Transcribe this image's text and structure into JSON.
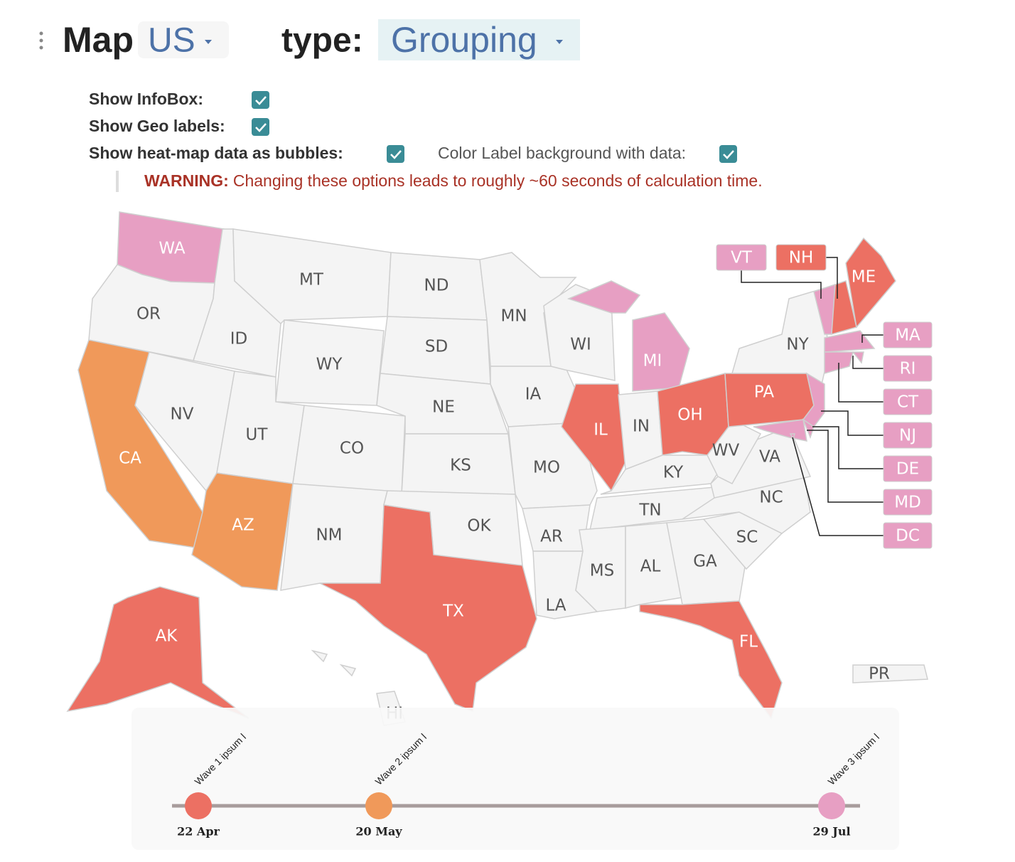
{
  "toolbar": {
    "title": "Map",
    "region": "US",
    "type_label": "type:",
    "type": "Grouping"
  },
  "options": [
    {
      "label": "Show InfoBox:",
      "checked": true
    },
    {
      "label": "Show Geo labels:",
      "checked": true
    },
    {
      "label": "Show heat-map data as bubbles:",
      "checked": true
    }
  ],
  "color_label_option": {
    "label": "Color Label background with data:",
    "checked": true
  },
  "warning": {
    "label": "WARNING:",
    "text": "Changing these options leads to roughly ~60 seconds of calculation time."
  },
  "map": {
    "states": [
      {
        "label": "WA",
        "color": "#e79fc3"
      },
      {
        "label": "OR",
        "color": "#f4f4f4"
      },
      {
        "label": "CA",
        "color": "#f0995a"
      },
      {
        "label": "NV",
        "color": "#f4f4f4"
      },
      {
        "label": "ID",
        "color": "#f4f4f4"
      },
      {
        "label": "MT",
        "color": "#f4f4f4"
      },
      {
        "label": "WY",
        "color": "#f4f4f4"
      },
      {
        "label": "UT",
        "color": "#f4f4f4"
      },
      {
        "label": "AZ",
        "color": "#f0995a"
      },
      {
        "label": "CO",
        "color": "#f4f4f4"
      },
      {
        "label": "NM",
        "color": "#f4f4f4"
      },
      {
        "label": "ND",
        "color": "#f4f4f4"
      },
      {
        "label": "SD",
        "color": "#f4f4f4"
      },
      {
        "label": "NE",
        "color": "#f4f4f4"
      },
      {
        "label": "KS",
        "color": "#f4f4f4"
      },
      {
        "label": "OK",
        "color": "#f4f4f4"
      },
      {
        "label": "TX",
        "color": "#ec7063"
      },
      {
        "label": "MN",
        "color": "#f4f4f4"
      },
      {
        "label": "IA",
        "color": "#f4f4f4"
      },
      {
        "label": "MO",
        "color": "#f4f4f4"
      },
      {
        "label": "AR",
        "color": "#f4f4f4"
      },
      {
        "label": "LA",
        "color": "#f4f4f4"
      },
      {
        "label": "WI",
        "color": "#f4f4f4"
      },
      {
        "label": "IL",
        "color": "#ec7063"
      },
      {
        "label": "MI",
        "color": "#e79fc3"
      },
      {
        "label": "IN",
        "color": "#f4f4f4"
      },
      {
        "label": "OH",
        "color": "#ec7063"
      },
      {
        "label": "KY",
        "color": "#f4f4f4"
      },
      {
        "label": "TN",
        "color": "#f4f4f4"
      },
      {
        "label": "MS",
        "color": "#f4f4f4"
      },
      {
        "label": "AL",
        "color": "#f4f4f4"
      },
      {
        "label": "GA",
        "color": "#f4f4f4"
      },
      {
        "label": "FL",
        "color": "#ec7063"
      },
      {
        "label": "SC",
        "color": "#f4f4f4"
      },
      {
        "label": "NC",
        "color": "#f4f4f4"
      },
      {
        "label": "VA",
        "color": "#f4f4f4"
      },
      {
        "label": "WV",
        "color": "#f4f4f4"
      },
      {
        "label": "PA",
        "color": "#ec7063"
      },
      {
        "label": "NY",
        "color": "#f4f4f4"
      },
      {
        "label": "ME",
        "color": "#ec7063"
      },
      {
        "label": "AK",
        "color": "#ec7063"
      },
      {
        "label": "HI",
        "color": "#f4f4f4"
      },
      {
        "label": "PR",
        "color": "#f4f4f4"
      },
      {
        "label": "VT",
        "color": "#e79fc3"
      },
      {
        "label": "NH",
        "color": "#ec7063"
      },
      {
        "label": "MA",
        "color": "#e79fc3"
      },
      {
        "label": "RI",
        "color": "#e79fc3"
      },
      {
        "label": "CT",
        "color": "#e79fc3"
      },
      {
        "label": "NJ",
        "color": "#e79fc3"
      },
      {
        "label": "DE",
        "color": "#e79fc3"
      },
      {
        "label": "MD",
        "color": "#e79fc3"
      },
      {
        "label": "DC",
        "color": "#e79fc3"
      }
    ]
  },
  "timeline": {
    "waves": [
      {
        "label": "Wave 1 ipsum l",
        "date": "22 Apr",
        "color": "#ec7063"
      },
      {
        "label": "Wave 2 ipsum l",
        "date": "20 May",
        "color": "#f0995a"
      },
      {
        "label": "Wave 3 ipsum l",
        "date": "29 Jul",
        "color": "#e79fc3"
      }
    ]
  }
}
